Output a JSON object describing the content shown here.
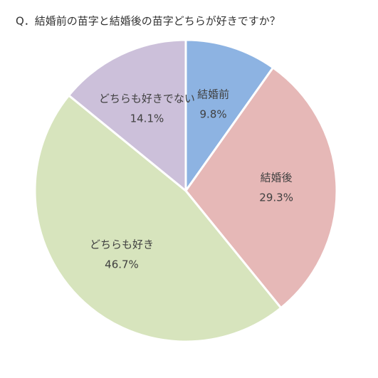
{
  "chart_data": {
    "type": "pie",
    "title": "Q．結婚前の苗字と結婚後の苗字どちらが好きですか？",
    "categories": [
      "結婚前",
      "結婚後",
      "どちらも好き",
      "どちらも好きでない"
    ],
    "values": [
      9.8,
      29.3,
      46.7,
      14.1
    ],
    "value_labels": [
      "9.8%",
      "29.3%",
      "46.7%",
      "14.1%"
    ],
    "colors": [
      "#8db3e2",
      "#e6b8b7",
      "#d7e4bd",
      "#ccc0da"
    ]
  }
}
